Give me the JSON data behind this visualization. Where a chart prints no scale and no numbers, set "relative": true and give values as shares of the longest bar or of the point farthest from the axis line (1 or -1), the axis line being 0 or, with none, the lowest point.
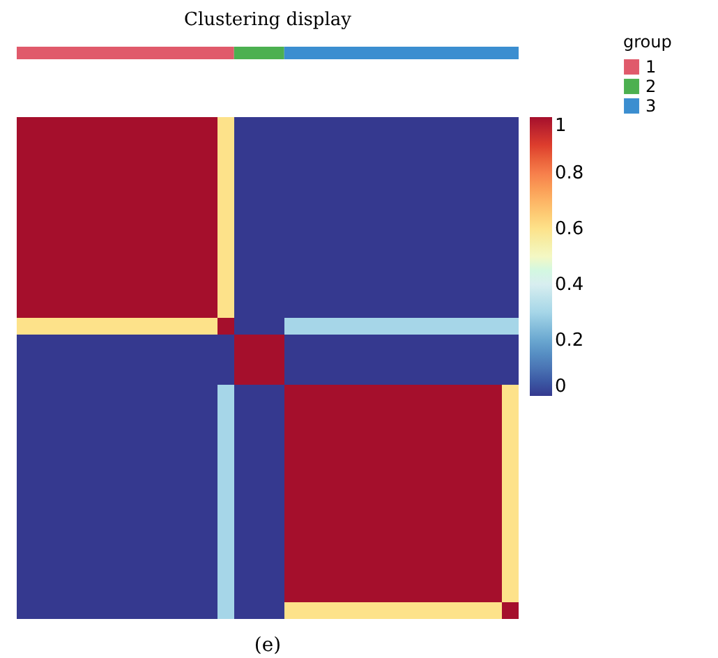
{
  "chart_data": [
    {
      "type": "bar",
      "title": "Clustering display",
      "orientation": "horizontal",
      "stacked": true,
      "relative": true,
      "categories": [
        null
      ],
      "legend_title": "group",
      "legend": "right",
      "series": [
        {
          "name": "1",
          "color": "#e05a6b",
          "values": [
            0.433
          ]
        },
        {
          "name": "2",
          "color": "#4cb050",
          "values": [
            0.1
          ]
        },
        {
          "name": "3",
          "color": "#3b8ed0",
          "values": [
            0.467
          ]
        }
      ]
    },
    {
      "type": "heatmap",
      "annotations": [
        "(e)"
      ],
      "tick_labels": false,
      "clim": [
        0,
        1
      ],
      "cticks": [
        0,
        0.2,
        0.4,
        0.6,
        0.8,
        1
      ],
      "categories": [
        null,
        null,
        null,
        null,
        null,
        null,
        null,
        null,
        null,
        null,
        null,
        null,
        null,
        null,
        null,
        null,
        null,
        null,
        null,
        null,
        null,
        null,
        null,
        null,
        null,
        null,
        null,
        null,
        null,
        null
      ],
      "y_categories": [
        null,
        null,
        null,
        null,
        null,
        null,
        null,
        null,
        null,
        null,
        null,
        null,
        null,
        null,
        null,
        null,
        null,
        null,
        null,
        null,
        null,
        null,
        null,
        null,
        null,
        null,
        null,
        null,
        null,
        null
      ],
      "cells": [
        [
          1,
          1,
          1,
          1,
          1,
          1,
          1,
          1,
          1,
          1,
          1,
          1,
          0.6,
          0,
          0,
          0,
          0,
          0,
          0,
          0,
          0,
          0,
          0,
          0,
          0,
          0,
          0,
          0,
          0,
          0
        ],
        [
          1,
          1,
          1,
          1,
          1,
          1,
          1,
          1,
          1,
          1,
          1,
          1,
          0.6,
          0,
          0,
          0,
          0,
          0,
          0,
          0,
          0,
          0,
          0,
          0,
          0,
          0,
          0,
          0,
          0,
          0
        ],
        [
          1,
          1,
          1,
          1,
          1,
          1,
          1,
          1,
          1,
          1,
          1,
          1,
          0.6,
          0,
          0,
          0,
          0,
          0,
          0,
          0,
          0,
          0,
          0,
          0,
          0,
          0,
          0,
          0,
          0,
          0
        ],
        [
          1,
          1,
          1,
          1,
          1,
          1,
          1,
          1,
          1,
          1,
          1,
          1,
          0.6,
          0,
          0,
          0,
          0,
          0,
          0,
          0,
          0,
          0,
          0,
          0,
          0,
          0,
          0,
          0,
          0,
          0
        ],
        [
          1,
          1,
          1,
          1,
          1,
          1,
          1,
          1,
          1,
          1,
          1,
          1,
          0.6,
          0,
          0,
          0,
          0,
          0,
          0,
          0,
          0,
          0,
          0,
          0,
          0,
          0,
          0,
          0,
          0,
          0
        ],
        [
          1,
          1,
          1,
          1,
          1,
          1,
          1,
          1,
          1,
          1,
          1,
          1,
          0.6,
          0,
          0,
          0,
          0,
          0,
          0,
          0,
          0,
          0,
          0,
          0,
          0,
          0,
          0,
          0,
          0,
          0
        ],
        [
          1,
          1,
          1,
          1,
          1,
          1,
          1,
          1,
          1,
          1,
          1,
          1,
          0.6,
          0,
          0,
          0,
          0,
          0,
          0,
          0,
          0,
          0,
          0,
          0,
          0,
          0,
          0,
          0,
          0,
          0
        ],
        [
          1,
          1,
          1,
          1,
          1,
          1,
          1,
          1,
          1,
          1,
          1,
          1,
          0.6,
          0,
          0,
          0,
          0,
          0,
          0,
          0,
          0,
          0,
          0,
          0,
          0,
          0,
          0,
          0,
          0,
          0
        ],
        [
          1,
          1,
          1,
          1,
          1,
          1,
          1,
          1,
          1,
          1,
          1,
          1,
          0.6,
          0,
          0,
          0,
          0,
          0,
          0,
          0,
          0,
          0,
          0,
          0,
          0,
          0,
          0,
          0,
          0,
          0
        ],
        [
          1,
          1,
          1,
          1,
          1,
          1,
          1,
          1,
          1,
          1,
          1,
          1,
          0.6,
          0,
          0,
          0,
          0,
          0,
          0,
          0,
          0,
          0,
          0,
          0,
          0,
          0,
          0,
          0,
          0,
          0
        ],
        [
          1,
          1,
          1,
          1,
          1,
          1,
          1,
          1,
          1,
          1,
          1,
          1,
          0.6,
          0,
          0,
          0,
          0,
          0,
          0,
          0,
          0,
          0,
          0,
          0,
          0,
          0,
          0,
          0,
          0,
          0
        ],
        [
          1,
          1,
          1,
          1,
          1,
          1,
          1,
          1,
          1,
          1,
          1,
          1,
          0.6,
          0,
          0,
          0,
          0,
          0,
          0,
          0,
          0,
          0,
          0,
          0,
          0,
          0,
          0,
          0,
          0,
          0
        ],
        [
          0.6,
          0.6,
          0.6,
          0.6,
          0.6,
          0.6,
          0.6,
          0.6,
          0.6,
          0.6,
          0.6,
          0.6,
          1,
          0,
          0,
          0,
          0.3,
          0.3,
          0.3,
          0.3,
          0.3,
          0.3,
          0.3,
          0.3,
          0.3,
          0.3,
          0.3,
          0.3,
          0.3,
          0.3
        ],
        [
          0,
          0,
          0,
          0,
          0,
          0,
          0,
          0,
          0,
          0,
          0,
          0,
          0,
          1,
          1,
          1,
          0,
          0,
          0,
          0,
          0,
          0,
          0,
          0,
          0,
          0,
          0,
          0,
          0,
          0
        ],
        [
          0,
          0,
          0,
          0,
          0,
          0,
          0,
          0,
          0,
          0,
          0,
          0,
          0,
          1,
          1,
          1,
          0,
          0,
          0,
          0,
          0,
          0,
          0,
          0,
          0,
          0,
          0,
          0,
          0,
          0
        ],
        [
          0,
          0,
          0,
          0,
          0,
          0,
          0,
          0,
          0,
          0,
          0,
          0,
          0,
          1,
          1,
          1,
          0,
          0,
          0,
          0,
          0,
          0,
          0,
          0,
          0,
          0,
          0,
          0,
          0,
          0
        ],
        [
          0,
          0,
          0,
          0,
          0,
          0,
          0,
          0,
          0,
          0,
          0,
          0,
          0.3,
          0,
          0,
          0,
          1,
          1,
          1,
          1,
          1,
          1,
          1,
          1,
          1,
          1,
          1,
          1,
          1,
          0.6
        ],
        [
          0,
          0,
          0,
          0,
          0,
          0,
          0,
          0,
          0,
          0,
          0,
          0,
          0.3,
          0,
          0,
          0,
          1,
          1,
          1,
          1,
          1,
          1,
          1,
          1,
          1,
          1,
          1,
          1,
          1,
          0.6
        ],
        [
          0,
          0,
          0,
          0,
          0,
          0,
          0,
          0,
          0,
          0,
          0,
          0,
          0.3,
          0,
          0,
          0,
          1,
          1,
          1,
          1,
          1,
          1,
          1,
          1,
          1,
          1,
          1,
          1,
          1,
          0.6
        ],
        [
          0,
          0,
          0,
          0,
          0,
          0,
          0,
          0,
          0,
          0,
          0,
          0,
          0.3,
          0,
          0,
          0,
          1,
          1,
          1,
          1,
          1,
          1,
          1,
          1,
          1,
          1,
          1,
          1,
          1,
          0.6
        ],
        [
          0,
          0,
          0,
          0,
          0,
          0,
          0,
          0,
          0,
          0,
          0,
          0,
          0.3,
          0,
          0,
          0,
          1,
          1,
          1,
          1,
          1,
          1,
          1,
          1,
          1,
          1,
          1,
          1,
          1,
          0.6
        ],
        [
          0,
          0,
          0,
          0,
          0,
          0,
          0,
          0,
          0,
          0,
          0,
          0,
          0.3,
          0,
          0,
          0,
          1,
          1,
          1,
          1,
          1,
          1,
          1,
          1,
          1,
          1,
          1,
          1,
          1,
          0.6
        ],
        [
          0,
          0,
          0,
          0,
          0,
          0,
          0,
          0,
          0,
          0,
          0,
          0,
          0.3,
          0,
          0,
          0,
          1,
          1,
          1,
          1,
          1,
          1,
          1,
          1,
          1,
          1,
          1,
          1,
          1,
          0.6
        ],
        [
          0,
          0,
          0,
          0,
          0,
          0,
          0,
          0,
          0,
          0,
          0,
          0,
          0.3,
          0,
          0,
          0,
          1,
          1,
          1,
          1,
          1,
          1,
          1,
          1,
          1,
          1,
          1,
          1,
          1,
          0.6
        ],
        [
          0,
          0,
          0,
          0,
          0,
          0,
          0,
          0,
          0,
          0,
          0,
          0,
          0.3,
          0,
          0,
          0,
          1,
          1,
          1,
          1,
          1,
          1,
          1,
          1,
          1,
          1,
          1,
          1,
          1,
          0.6
        ],
        [
          0,
          0,
          0,
          0,
          0,
          0,
          0,
          0,
          0,
          0,
          0,
          0,
          0.3,
          0,
          0,
          0,
          1,
          1,
          1,
          1,
          1,
          1,
          1,
          1,
          1,
          1,
          1,
          1,
          1,
          0.6
        ],
        [
          0,
          0,
          0,
          0,
          0,
          0,
          0,
          0,
          0,
          0,
          0,
          0,
          0.3,
          0,
          0,
          0,
          1,
          1,
          1,
          1,
          1,
          1,
          1,
          1,
          1,
          1,
          1,
          1,
          1,
          0.6
        ],
        [
          0,
          0,
          0,
          0,
          0,
          0,
          0,
          0,
          0,
          0,
          0,
          0,
          0.3,
          0,
          0,
          0,
          1,
          1,
          1,
          1,
          1,
          1,
          1,
          1,
          1,
          1,
          1,
          1,
          1,
          0.6
        ],
        [
          0,
          0,
          0,
          0,
          0,
          0,
          0,
          0,
          0,
          0,
          0,
          0,
          0.3,
          0,
          0,
          0,
          1,
          1,
          1,
          1,
          1,
          1,
          1,
          1,
          1,
          1,
          1,
          1,
          1,
          0.6
        ],
        [
          0,
          0,
          0,
          0,
          0,
          0,
          0,
          0,
          0,
          0,
          0,
          0,
          0.3,
          0,
          0,
          0,
          0.6,
          0.6,
          0.6,
          0.6,
          0.6,
          0.6,
          0.6,
          0.6,
          0.6,
          0.6,
          0.6,
          0.6,
          0.6,
          1
        ]
      ]
    }
  ]
}
